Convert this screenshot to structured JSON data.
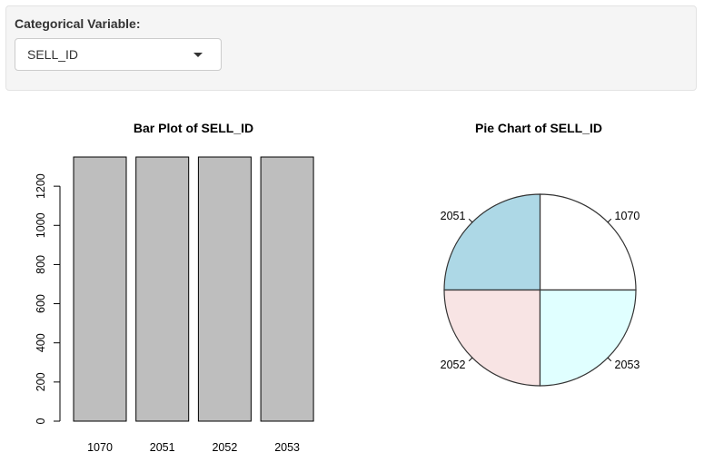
{
  "control": {
    "label": "Categorical Variable:",
    "selected": "SELL_ID"
  },
  "chart_data": [
    {
      "type": "bar",
      "title": "Bar Plot of SELL_ID",
      "categories": [
        "1070",
        "2051",
        "2052",
        "2053"
      ],
      "values": [
        1349,
        1349,
        1349,
        1349
      ],
      "ylim": [
        0,
        1349
      ],
      "yticks": [
        0,
        200,
        400,
        600,
        800,
        1000,
        1200
      ],
      "bar_color": "#bebebe",
      "grid": false
    },
    {
      "type": "pie",
      "title": "Pie Chart of SELL_ID",
      "labels": [
        "1070",
        "2051",
        "2052",
        "2053"
      ],
      "values": [
        1349,
        1349,
        1349,
        1349
      ],
      "colors": [
        "#ffffff",
        "#add8e6",
        "#f8e4e4",
        "#e0ffff"
      ]
    }
  ]
}
